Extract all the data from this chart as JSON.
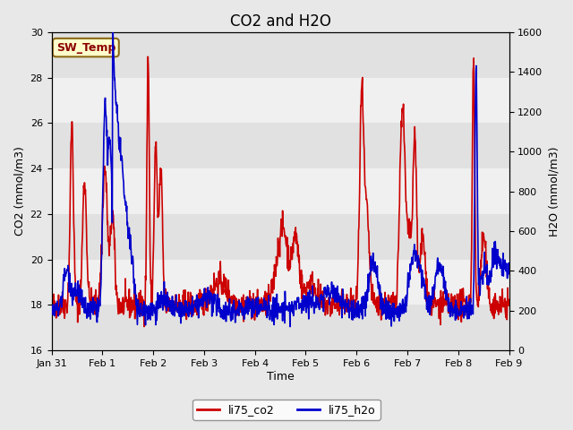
{
  "title": "CO2 and H2O",
  "xlabel": "Time",
  "ylabel_left": "CO2 (mmol/m3)",
  "ylabel_right": "H2O (mmol/m3)",
  "ylim_left": [
    16,
    30
  ],
  "ylim_right": [
    0,
    1600
  ],
  "yticks_left": [
    16,
    18,
    20,
    22,
    24,
    26,
    28,
    30
  ],
  "yticks_right": [
    0,
    200,
    400,
    600,
    800,
    1000,
    1200,
    1400,
    1600
  ],
  "xtick_labels": [
    "Jan 31",
    "Feb 1",
    "Feb 2",
    "Feb 3",
    "Feb 4",
    "Feb 5",
    "Feb 6",
    "Feb 7",
    "Feb 8",
    "Feb 9"
  ],
  "co2_color": "#cc0000",
  "h2o_color": "#0000cc",
  "background_color": "#e8e8e8",
  "plot_bg_color": "#f0f0f0",
  "legend_label_co2": "li75_co2",
  "legend_label_h2o": "li75_h2o",
  "annotation_text": "SW_Temp",
  "annotation_color": "#8b0000",
  "annotation_bg": "#ffffcc",
  "annotation_border": "#8b6914",
  "line_width": 1.2,
  "title_fontsize": 12,
  "axis_fontsize": 9,
  "tick_fontsize": 8
}
